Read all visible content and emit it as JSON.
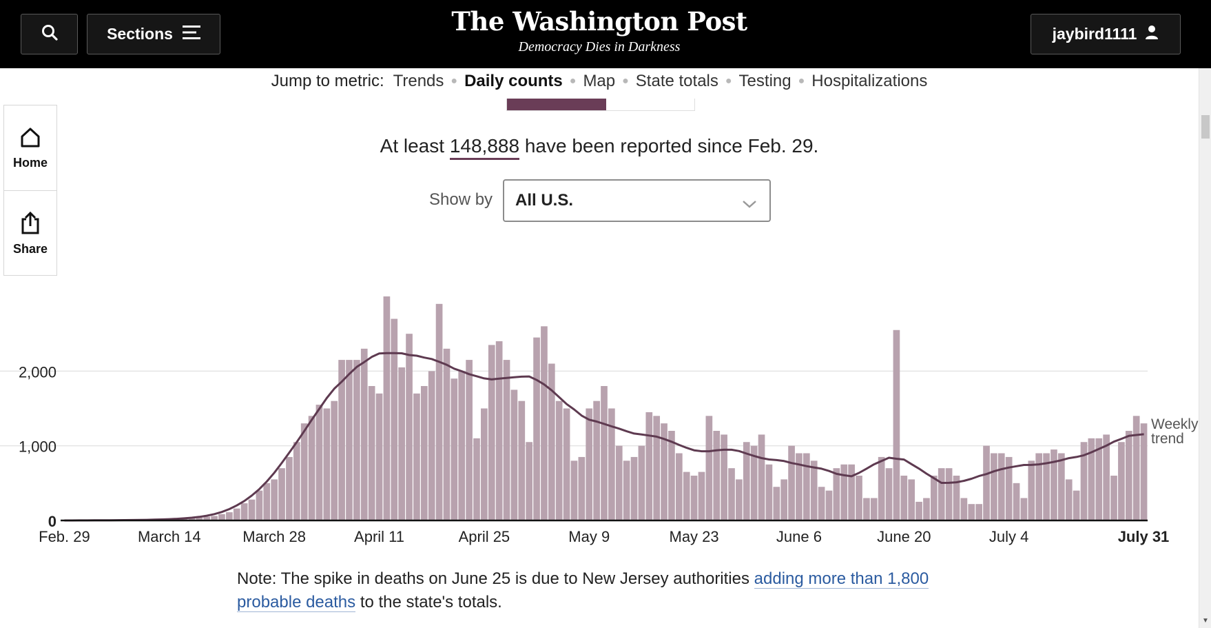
{
  "header": {
    "logo": "The Washington Post",
    "tagline": "Democracy Dies in Darkness",
    "sections_label": "Sections",
    "user_label": "jaybird1111"
  },
  "jump_nav": {
    "label": "Jump to metric:",
    "items": [
      {
        "label": "Trends",
        "active": false
      },
      {
        "label": "Daily counts",
        "active": true
      },
      {
        "label": "Map",
        "active": false
      },
      {
        "label": "State totals",
        "active": false
      },
      {
        "label": "Testing",
        "active": false
      },
      {
        "label": "Hospitalizations",
        "active": false
      }
    ]
  },
  "rail": {
    "home_label": "Home",
    "share_label": "Share"
  },
  "summary": {
    "prefix": "At least",
    "total": "148,888",
    "suffix": "have been reported since Feb. 29."
  },
  "filter": {
    "label": "Show by",
    "selected": "All U.S."
  },
  "note": {
    "prefix": "Note: The spike in deaths on June 25 is due to New Jersey authorities",
    "link_text": "adding more than 1,800 probable deaths",
    "suffix": "to the state's totals."
  },
  "colors": {
    "bar": "#b8a2ae",
    "trend": "#5e3a50",
    "accent": "#6a3d57"
  },
  "icons": [
    "search-icon",
    "menu-icon",
    "user-icon",
    "home-icon",
    "share-icon",
    "chevron-down-icon"
  ],
  "chart_data": {
    "type": "bar",
    "x_start": "Feb. 29",
    "x_end": "July 31",
    "x_tick_labels": [
      "Feb. 29",
      "March 14",
      "March 28",
      "April 11",
      "April 25",
      "May 9",
      "May 23",
      "June 6",
      "June 20",
      "July 4",
      "July 31"
    ],
    "y_tick_labels": [
      "0",
      "1,000",
      "2,000"
    ],
    "ylim": [
      0,
      3000
    ],
    "grid": true,
    "trend_label": "Weekly trend",
    "values": [
      0,
      0,
      0,
      0,
      0,
      5,
      2,
      5,
      3,
      5,
      5,
      8,
      10,
      10,
      12,
      18,
      25,
      35,
      40,
      50,
      60,
      85,
      110,
      160,
      230,
      280,
      400,
      500,
      550,
      700,
      850,
      1050,
      1300,
      1400,
      1550,
      1500,
      1600,
      2150,
      2150,
      2150,
      2300,
      1800,
      1700,
      3000,
      2700,
      2050,
      2500,
      1700,
      1800,
      2000,
      2900,
      2300,
      1900,
      2000,
      2150,
      1100,
      1500,
      2350,
      2400,
      2150,
      1750,
      1600,
      1050,
      2450,
      2600,
      2100,
      1600,
      1500,
      800,
      850,
      1500,
      1600,
      1800,
      1500,
      1000,
      800,
      850,
      1000,
      1450,
      1400,
      1300,
      1200,
      900,
      650,
      600,
      650,
      1400,
      1200,
      1150,
      700,
      550,
      1050,
      1000,
      1150,
      750,
      450,
      550,
      1000,
      900,
      900,
      800,
      450,
      400,
      700,
      750,
      750,
      600,
      300,
      300,
      850,
      700,
      2550,
      600,
      550,
      250,
      300,
      600,
      700,
      700,
      600,
      300,
      220,
      220,
      1000,
      900,
      900,
      850,
      500,
      300,
      800,
      900,
      900,
      950,
      900,
      550,
      400,
      1050,
      1100,
      1100,
      1150,
      600,
      1050,
      1200,
      1400,
      1300
    ]
  }
}
